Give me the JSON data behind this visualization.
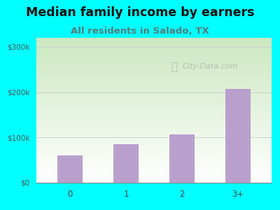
{
  "categories": [
    "0",
    "1",
    "2",
    "3+"
  ],
  "values": [
    60000,
    85000,
    107000,
    207000
  ],
  "bar_color": "#b9a0cc",
  "title": "Median family income by earners",
  "subtitle": "All residents in Salado, TX",
  "subtitle_color": "#5a7a7a",
  "title_color": "#111111",
  "title_fontsize": 12.5,
  "subtitle_fontsize": 9.5,
  "ylim": [
    0,
    320000
  ],
  "yticks": [
    0,
    100000,
    200000,
    300000
  ],
  "ytick_labels": [
    "$0",
    "$100k",
    "$200k",
    "$300k"
  ],
  "bg_color": "#00ffff",
  "gradient_top": "#ffffff",
  "gradient_bottom": "#cce8c0",
  "watermark": "City-Data.com",
  "bar_width": 0.45
}
